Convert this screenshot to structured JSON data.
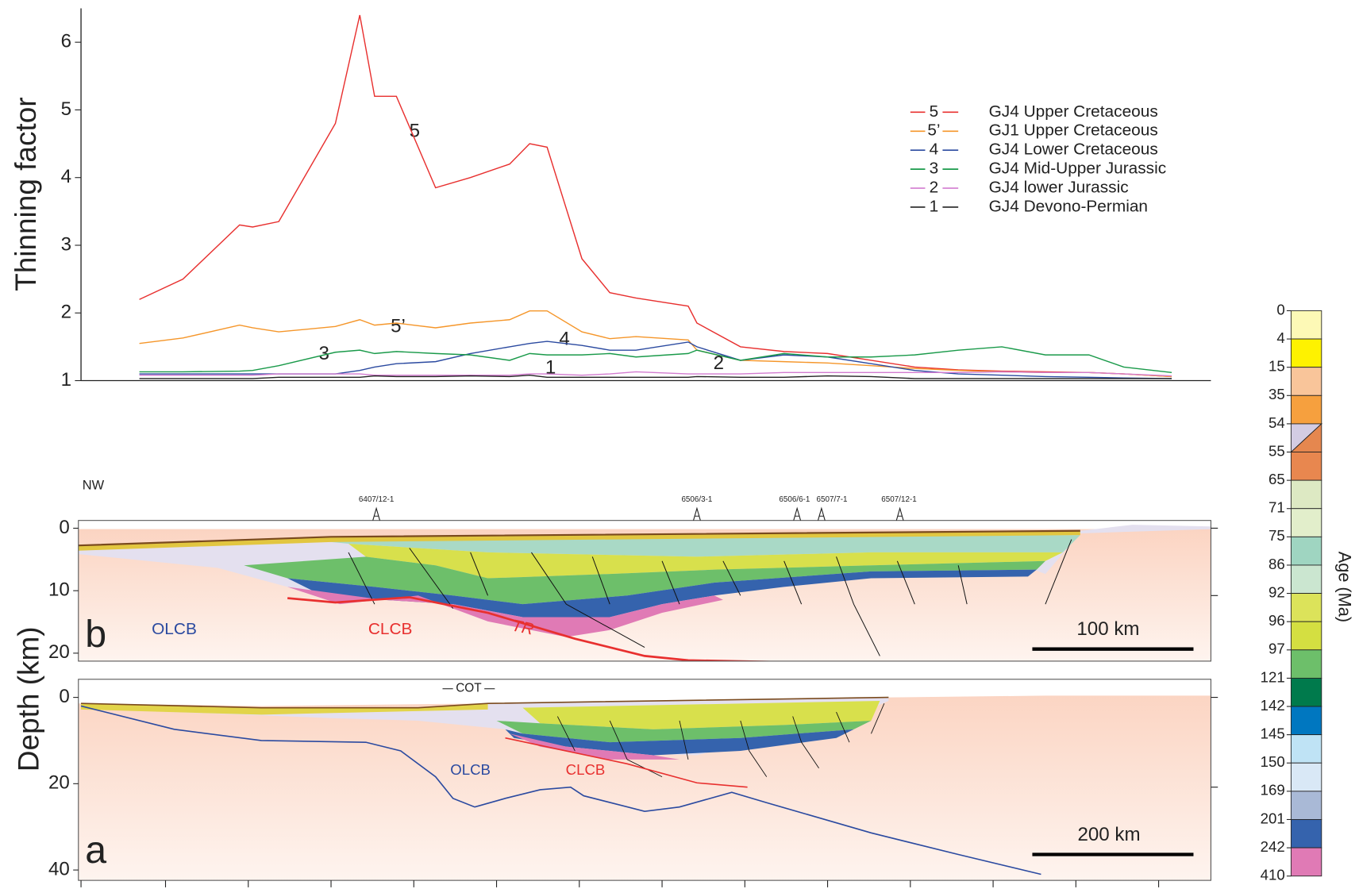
{
  "chart_data": [
    {
      "type": "line",
      "y_label": "Thinning factor",
      "xlim": [
        0,
        1300
      ],
      "ylim": [
        1,
        6.5
      ],
      "yticks": [
        1,
        2,
        3,
        4,
        5,
        6
      ],
      "legend": "top-right",
      "x": [
        70,
        120,
        185,
        200,
        230,
        295,
        323,
        340,
        365,
        410,
        450,
        495,
        518,
        538,
        578,
        610,
        640,
        700,
        710,
        760,
        810,
        860,
        910,
        960,
        1010,
        1060,
        1110,
        1160,
        1200,
        1255
      ],
      "series": [
        {
          "name": "GJ4 Upper Cretaceous",
          "label": "5",
          "color": "#e8302f",
          "values": [
            2.2,
            2.5,
            3.3,
            3.27,
            3.35,
            4.8,
            6.4,
            5.2,
            5.2,
            3.85,
            4.0,
            4.2,
            4.5,
            4.45,
            2.8,
            2.3,
            2.22,
            2.1,
            1.85,
            1.5,
            1.43,
            1.4,
            1.3,
            1.2,
            1.16,
            1.14,
            1.13,
            1.12,
            1.1,
            1.06
          ]
        },
        {
          "name": "GJ1 Upper Cretaceous",
          "label": "5’",
          "color": "#f5962a",
          "values": [
            1.55,
            1.63,
            1.82,
            1.78,
            1.72,
            1.8,
            1.9,
            1.82,
            1.85,
            1.78,
            1.85,
            1.9,
            2.03,
            2.03,
            1.72,
            1.62,
            1.65,
            1.6,
            1.45,
            1.3,
            1.28,
            1.26,
            1.22,
            1.18,
            1.15,
            1.13,
            1.12,
            1.12,
            1.1,
            1.06
          ]
        },
        {
          "name": "GJ4 Lower Cretaceous",
          "label": "4",
          "color": "#2b4aa0",
          "values": [
            1.1,
            1.1,
            1.1,
            1.1,
            1.1,
            1.1,
            1.15,
            1.2,
            1.25,
            1.28,
            1.4,
            1.5,
            1.55,
            1.58,
            1.52,
            1.45,
            1.45,
            1.57,
            1.5,
            1.3,
            1.38,
            1.35,
            1.25,
            1.15,
            1.1,
            1.08,
            1.06,
            1.05,
            1.04,
            1.03
          ]
        },
        {
          "name": "GJ4 Mid-Upper Jurassic",
          "label": "3",
          "color": "#1a9a4a",
          "values": [
            1.13,
            1.13,
            1.14,
            1.15,
            1.22,
            1.42,
            1.45,
            1.4,
            1.43,
            1.4,
            1.38,
            1.3,
            1.4,
            1.38,
            1.38,
            1.4,
            1.35,
            1.4,
            1.45,
            1.3,
            1.4,
            1.35,
            1.35,
            1.38,
            1.45,
            1.5,
            1.38,
            1.38,
            1.2,
            1.12
          ]
        },
        {
          "name": "GJ4 lower Jurassic",
          "label": "2",
          "color": "#d27bd0",
          "values": [
            1.08,
            1.08,
            1.08,
            1.08,
            1.1,
            1.1,
            1.1,
            1.08,
            1.08,
            1.08,
            1.08,
            1.08,
            1.1,
            1.1,
            1.08,
            1.1,
            1.13,
            1.1,
            1.1,
            1.1,
            1.12,
            1.12,
            1.12,
            1.12,
            1.12,
            1.13,
            1.12,
            1.12,
            1.1,
            1.07
          ]
        },
        {
          "name": "GJ4 Devono-Permian",
          "label": "1",
          "color": "#222222",
          "values": [
            1.03,
            1.03,
            1.03,
            1.03,
            1.05,
            1.05,
            1.05,
            1.07,
            1.06,
            1.06,
            1.07,
            1.06,
            1.08,
            1.05,
            1.05,
            1.05,
            1.05,
            1.05,
            1.06,
            1.05,
            1.05,
            1.07,
            1.06,
            1.03,
            1.03,
            1.03,
            1.03,
            1.03,
            1.03,
            1.03
          ]
        }
      ]
    },
    {
      "type": "section",
      "panel": "b",
      "y_label": "Depth (km)",
      "ylim": [
        0,
        21
      ],
      "yticks": [
        0,
        10,
        20
      ],
      "direction": "NW",
      "wells": [
        "6407/12-1",
        "6506/3-1",
        "6506/6-1",
        "6507/7-1",
        "6507/12-1"
      ],
      "labels": {
        "olcb": "OLCB",
        "clcb": "CLCB",
        "tr": "TR"
      },
      "scale_bar": "100 km"
    },
    {
      "type": "section",
      "panel": "a",
      "ylim": [
        0,
        42
      ],
      "yticks": [
        0,
        20,
        40
      ],
      "labels": {
        "olcb": "OLCB",
        "clcb": "CLCB",
        "cot": "COT"
      },
      "scale_bar": "200 km"
    },
    {
      "type": "colorbar",
      "label": "Age (Ma)",
      "ticks": [
        0,
        4,
        15,
        35,
        54,
        55,
        65,
        71,
        75,
        86,
        92,
        96,
        97,
        121,
        142,
        145,
        150,
        169,
        201,
        242,
        410
      ],
      "colors": [
        "#fdf9b6",
        "#fef200",
        "#f9c59a",
        "#f6a03e",
        [
          "#d3cce3",
          "#e5874f"
        ],
        "#e8874f",
        "#dde9c3",
        "#e2eecb",
        "#9fd5c1",
        "#cbe6d0",
        "#dce35a",
        "#d4df41",
        "#6dbf6a",
        "#007a4c",
        "#0077c0",
        "#bfe3f5",
        "#d9e8f6",
        "#a9b9d6",
        "#3563ad",
        "#e07ab5"
      ]
    }
  ]
}
